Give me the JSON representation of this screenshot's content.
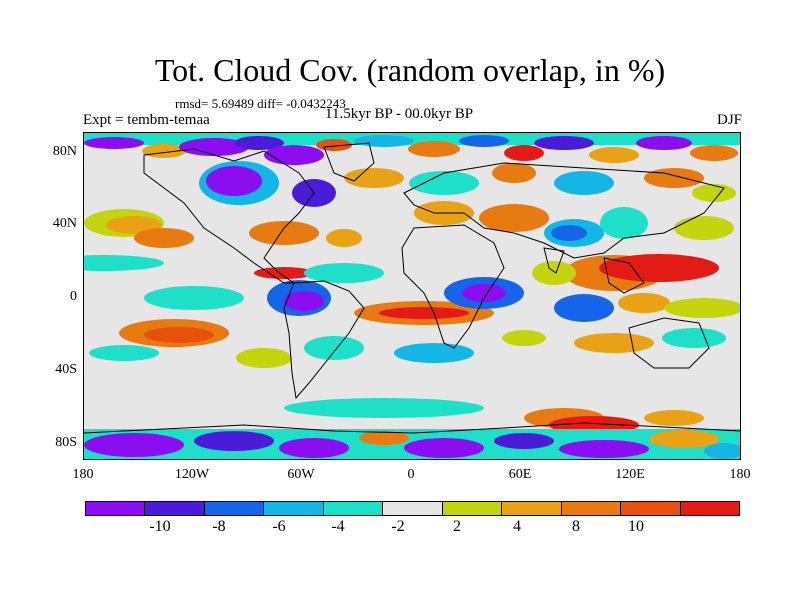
{
  "title": "Tot. Cloud Cov. (random overlap, in %)",
  "stats": "rmsd= 5.69489 diff= -0.0432243",
  "experiment": "Expt = tembm-temaa",
  "period": "11.5kyr BP - 00.0kyr BP",
  "season": "DJF",
  "lat_labels": [
    "80N",
    "40N",
    "0",
    "40S",
    "80S"
  ],
  "lon_labels": [
    "180",
    "120W",
    "60W",
    "0",
    "60E",
    "120E",
    "180"
  ],
  "colorbar": {
    "colors": [
      "#8a0eef",
      "#4b1cd8",
      "#1565e8",
      "#14b6e6",
      "#1ee0c8",
      "#e6e6e6",
      "#c4d40d",
      "#e8a214",
      "#e87a12",
      "#e8500e",
      "#e41a14"
    ],
    "labels": [
      "-10",
      "-8",
      "-6",
      "-4",
      "-2",
      "2",
      "4",
      "8",
      "10"
    ]
  }
}
